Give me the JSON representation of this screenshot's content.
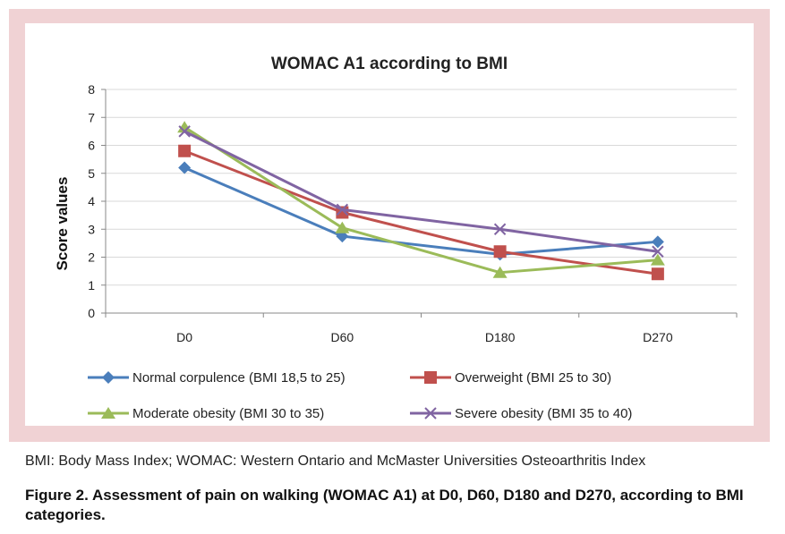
{
  "chart_data": {
    "type": "line",
    "title": "WOMAC A1 according  to BMI",
    "xlabel": "",
    "ylabel": "Score values",
    "categories": [
      "D0",
      "D60",
      "D180",
      "D270"
    ],
    "ylim": [
      0,
      8
    ],
    "yticks": [
      "0",
      "1",
      "2",
      "3",
      "4",
      "5",
      "6",
      "7",
      "8"
    ],
    "grid": true,
    "legend_position": "bottom",
    "series": [
      {
        "name": "Normal corpulence (BMI 18,5 to 25)",
        "values": [
          5.2,
          2.75,
          2.1,
          2.55
        ],
        "color": "#4a7ebb",
        "marker": "diamond"
      },
      {
        "name": "Overweight (BMI 25 to 30)",
        "values": [
          5.8,
          3.6,
          2.2,
          1.4
        ],
        "color": "#c0504d",
        "marker": "square"
      },
      {
        "name": "Moderate obesity (BMI 30 to 35)",
        "values": [
          6.65,
          3.05,
          1.45,
          1.9
        ],
        "color": "#9bbb59",
        "marker": "triangle"
      },
      {
        "name": "Severe obesity (BMI 35 to 40)",
        "values": [
          6.5,
          3.7,
          3.0,
          2.2
        ],
        "color": "#8064a2",
        "marker": "x"
      }
    ]
  },
  "caption": "BMI: Body Mass Index; WOMAC: Western Ontario and McMaster Universities Osteoarthritis Index",
  "figure_title": "Figure 2. Assessment of pain on walking (WOMAC A1) at D0, D60, D180 and D270, according to BMI categories."
}
